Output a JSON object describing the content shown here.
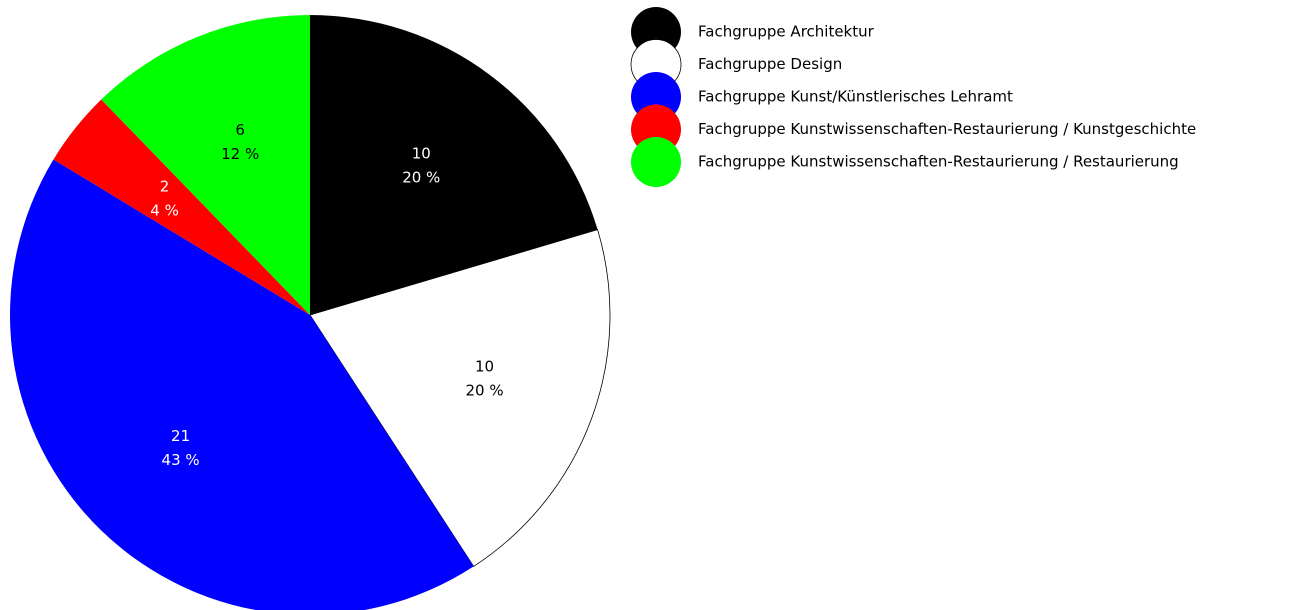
{
  "chart_data": {
    "type": "pie",
    "categories": [
      "Fachgruppe Architektur",
      "Fachgruppe Design",
      "Fachgruppe Kunst/Künstlerisches Lehramt",
      "Fachgruppe Kunstwissenschaften-Restaurierung / Kunstgeschichte",
      "Fachgruppe Kunstwissenschaften-Restaurierung / Restaurierung"
    ],
    "values": [
      10,
      10,
      21,
      2,
      6
    ],
    "percent_labels": [
      "20 %",
      "20 %",
      "43 %",
      "4 %",
      "12 %"
    ],
    "colors": [
      "#000000",
      "#ffffff",
      "#0000ff",
      "#ff0000",
      "#00ff00"
    ],
    "legend": "top-right"
  }
}
